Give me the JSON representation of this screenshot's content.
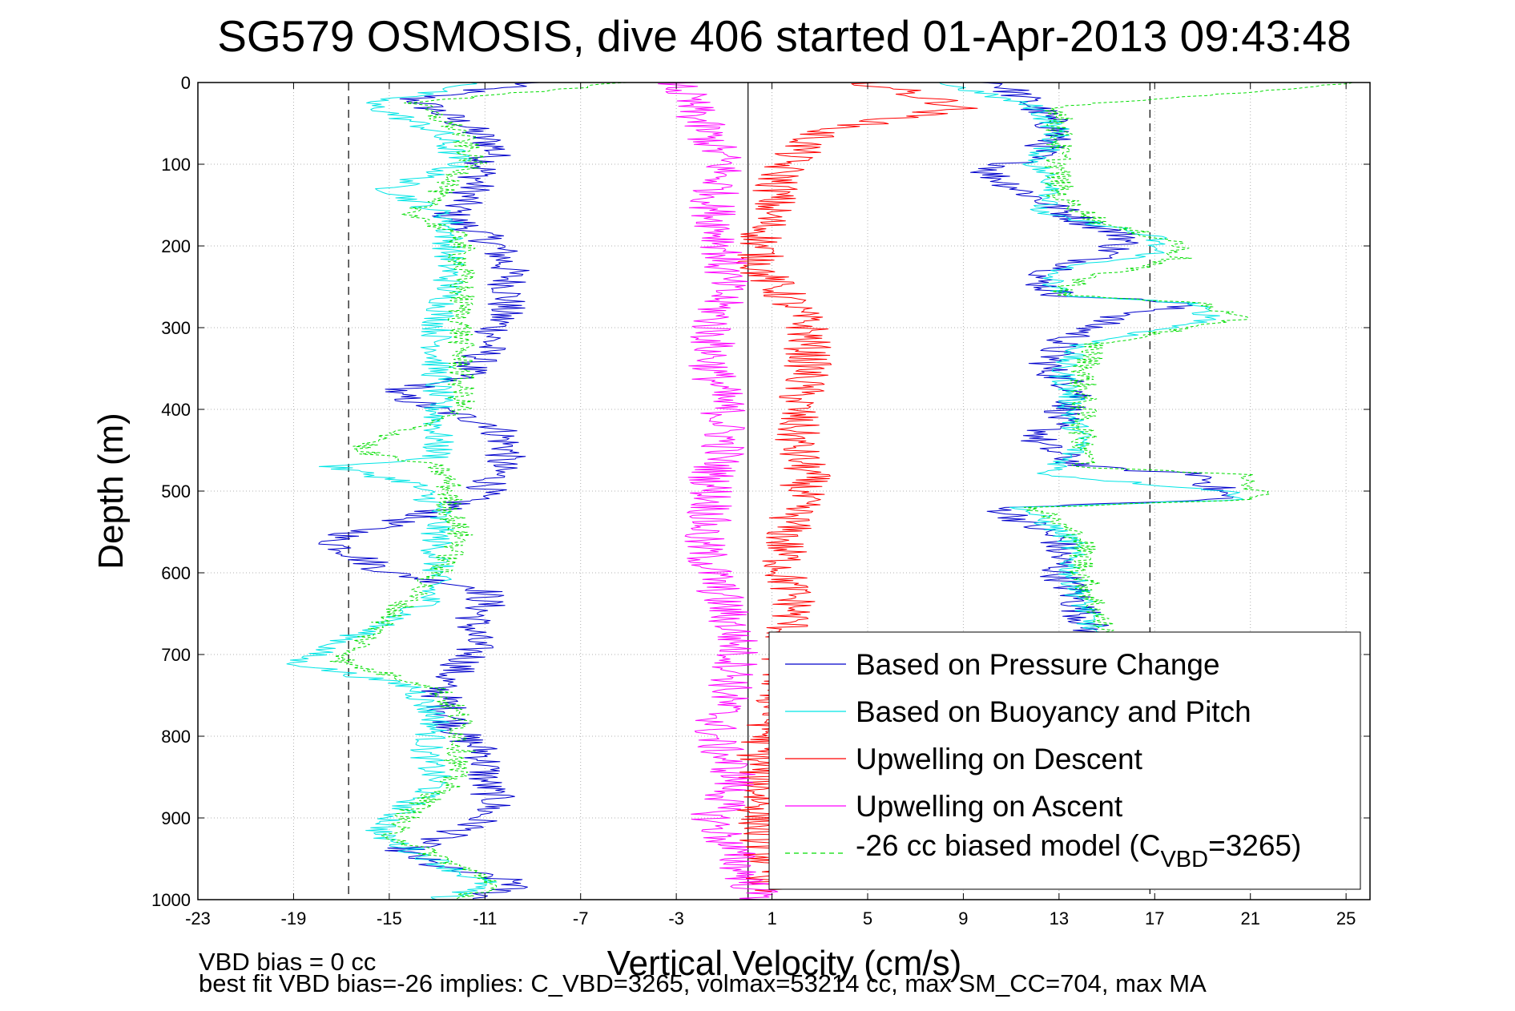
{
  "chart_data": {
    "type": "line",
    "title": "SG579 OSMOSIS, dive 406 started 01-Apr-2013 09:43:48",
    "xlabel": "Vertical Velocity (cm/s)",
    "ylabel": "Depth (m)",
    "xlim": [
      -23,
      26
    ],
    "ylim": [
      0,
      1000
    ],
    "y_reversed": true,
    "grid": true,
    "x_ticks": [
      -23,
      -19,
      -15,
      -11,
      -7,
      -3,
      1,
      5,
      9,
      13,
      17,
      21,
      25
    ],
    "y_ticks": [
      0,
      100,
      200,
      300,
      400,
      500,
      600,
      700,
      800,
      900,
      1000
    ],
    "x_tick_labels": [
      "-23",
      "-19",
      "-15",
      "-11",
      "-7",
      "-3",
      "1",
      "5",
      "9",
      "13",
      "17",
      "21",
      "25"
    ],
    "y_tick_labels": [
      "0",
      "100",
      "200",
      "300",
      "400",
      "500",
      "600",
      "700",
      "800",
      "900",
      "1000"
    ],
    "reference_lines": [
      {
        "x": -16.7,
        "style": "dashed",
        "color": "#000000"
      },
      {
        "x": 0,
        "style": "solid",
        "color": "#000000"
      },
      {
        "x": 16.8,
        "style": "dashed",
        "color": "#000000"
      }
    ],
    "legend": {
      "position": "lower-right",
      "entries": [
        {
          "label": "Based on Pressure Change",
          "color": "#0000cc",
          "style": "solid"
        },
        {
          "label": "Based on Buoyancy and Pitch",
          "color": "#00e5e5",
          "style": "solid"
        },
        {
          "label": "Upwelling on Descent",
          "color": "#ff0000",
          "style": "solid"
        },
        {
          "label": "Upwelling on Ascent",
          "color": "#ff00ff",
          "style": "solid"
        },
        {
          "label_prefix": "-26 cc biased model (C",
          "label_sub": "VBD",
          "label_suffix": "=3265)",
          "color": "#00dd00",
          "style": "dashed"
        }
      ]
    },
    "series": [
      {
        "name": "Based on Pressure Change (descent)",
        "color": "#0000cc",
        "noise": 0.9,
        "x": [
          -9,
          -14,
          -12,
          -10.5,
          -11,
          -11.5,
          -12.5,
          -11.5,
          -10.5,
          -10,
          -10,
          -10.5,
          -11,
          -12,
          -15,
          -13,
          -10.5,
          -10,
          -10.5,
          -10.5,
          -11,
          -12.5,
          -17.5,
          -15,
          -11,
          -11,
          -11.5,
          -11.5,
          -13,
          -12,
          -11,
          -11,
          -10.5,
          -11.5,
          -14.5,
          -13,
          -9.5,
          -11.5
        ],
        "y": [
          0,
          20,
          50,
          80,
          100,
          130,
          165,
          180,
          200,
          230,
          260,
          300,
          330,
          360,
          380,
          400,
          420,
          450,
          470,
          480,
          500,
          520,
          560,
          600,
          620,
          640,
          660,
          700,
          740,
          800,
          820,
          860,
          880,
          910,
          940,
          960,
          980,
          1000
        ]
      },
      {
        "name": "Based on Pressure Change (ascent)",
        "color": "#0000cc",
        "noise": 0.9,
        "x": [
          10.5,
          12,
          13,
          12,
          10,
          12,
          14,
          16,
          15,
          12,
          13,
          18.5,
          15,
          13,
          12.5,
          14,
          13,
          12,
          14,
          19,
          20,
          10.5,
          13,
          13,
          13.5,
          14,
          14.5
        ],
        "y": [
          0,
          30,
          60,
          90,
          110,
          140,
          170,
          190,
          210,
          240,
          260,
          270,
          290,
          320,
          350,
          380,
          410,
          440,
          470,
          480,
          510,
          520,
          560,
          600,
          620,
          650,
          680
        ]
      },
      {
        "name": "Based on Buoyancy and Pitch (descent)",
        "color": "#00e5e5",
        "noise": 0.7,
        "x": [
          -11,
          -16,
          -13,
          -12,
          -15,
          -12.5,
          -12.5,
          -12.5,
          -13,
          -13,
          -13,
          -13,
          -13,
          -17.5,
          -14,
          -13,
          -13,
          -13,
          -13.5,
          -19,
          -14,
          -13,
          -13.5,
          -13,
          -14.5,
          -15.5,
          -12.5,
          -11,
          -13
        ],
        "y": [
          0,
          25,
          60,
          100,
          130,
          165,
          200,
          250,
          300,
          350,
          400,
          440,
          460,
          470,
          490,
          520,
          560,
          600,
          640,
          710,
          740,
          780,
          820,
          860,
          890,
          920,
          960,
          980,
          1000
        ]
      },
      {
        "name": "Based on Buoyancy and Pitch (ascent)",
        "color": "#00e5e5",
        "noise": 0.6,
        "x": [
          8,
          12,
          13,
          12,
          13,
          12,
          15,
          17,
          17,
          12.5,
          13,
          18.5,
          19.5,
          14,
          13,
          13.5,
          13.5,
          14,
          13,
          12.5,
          20,
          21,
          11.5,
          13.5,
          13.5,
          14,
          14.5
        ],
        "y": [
          0,
          30,
          60,
          100,
          130,
          160,
          175,
          190,
          210,
          230,
          260,
          270,
          290,
          320,
          350,
          380,
          410,
          440,
          470,
          480,
          500,
          510,
          520,
          560,
          600,
          640,
          680
        ]
      },
      {
        "name": "Upwelling on Descent",
        "color": "#ff0000",
        "noise": 1.0,
        "x": [
          5,
          9,
          3,
          1.5,
          1,
          0.5,
          0.5,
          1.5,
          2.5,
          2.5,
          2,
          2,
          2.5,
          2,
          1.5,
          1.5,
          2,
          1.5,
          1.5,
          1,
          0.5,
          0.5,
          0.5,
          1
        ],
        "y": [
          0,
          30,
          60,
          100,
          150,
          200,
          230,
          260,
          300,
          350,
          400,
          450,
          480,
          520,
          560,
          600,
          640,
          680,
          720,
          780,
          820,
          860,
          900,
          990
        ]
      },
      {
        "name": "Upwelling on Ascent",
        "color": "#ff00ff",
        "noise": 1.0,
        "x": [
          -3,
          -2,
          -1,
          -1.5,
          -1,
          -1,
          -1.5,
          -1.5,
          -1,
          -1,
          -1.5,
          -1.5,
          -2,
          -1.5,
          -1,
          -0.5,
          -0.5,
          -1,
          -1.5,
          -0.5,
          -1,
          -1.5,
          -0.5,
          0.5
        ],
        "y": [
          0,
          50,
          100,
          150,
          200,
          250,
          300,
          350,
          400,
          450,
          480,
          520,
          560,
          600,
          640,
          680,
          720,
          760,
          800,
          850,
          880,
          900,
          950,
          1000
        ]
      },
      {
        "name": "-26 cc biased model (C_VBD=3265) (descent)",
        "color": "#00dd00",
        "dashed": true,
        "noise": 0.6,
        "x": [
          -5,
          -14,
          -12,
          -11.5,
          -14,
          -12,
          -12,
          -12,
          -12,
          -12,
          -12,
          -16.5,
          -13,
          -12.5,
          -12.5,
          -12,
          -13,
          -17,
          -13,
          -12,
          -12,
          -12.5,
          -14,
          -15,
          -12,
          -10.5,
          -12
        ],
        "y": [
          0,
          25,
          60,
          100,
          160,
          190,
          230,
          270,
          310,
          350,
          400,
          450,
          470,
          490,
          520,
          560,
          600,
          710,
          740,
          780,
          820,
          860,
          890,
          920,
          960,
          980,
          1000
        ]
      },
      {
        "name": "-26 cc biased model (C_VBD=3265) (ascent)",
        "color": "#00dd00",
        "dashed": true,
        "noise": 0.6,
        "x": [
          25.5,
          13,
          13,
          13,
          13,
          15,
          18,
          18,
          14,
          13,
          19,
          20.5,
          14.5,
          14,
          14,
          14,
          14.5,
          13.5,
          21,
          21.5,
          12,
          14,
          14,
          14.5,
          15
        ],
        "y": [
          0,
          30,
          60,
          100,
          140,
          175,
          195,
          215,
          240,
          260,
          270,
          290,
          320,
          360,
          400,
          440,
          460,
          470,
          480,
          510,
          520,
          560,
          600,
          640,
          680
        ]
      }
    ]
  },
  "footnotes": {
    "line1": "VBD bias = 0 cc",
    "line2": "best fit VBD bias=-26 implies: C_VBD=3265, volmax=53214 cc, max SM_CC=704, max MA"
  }
}
